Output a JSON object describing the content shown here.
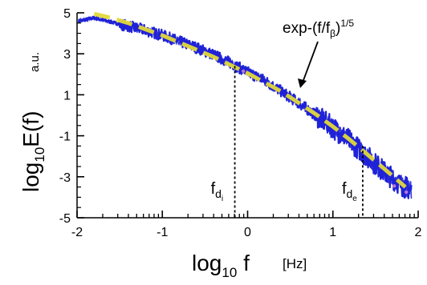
{
  "chart_data": {
    "type": "line",
    "xlabel": {
      "base": "log",
      "sub": "10",
      "main": " f",
      "unit": "[Hz]"
    },
    "ylabel": {
      "base": "log",
      "sub": "10",
      "main": "E(f)",
      "unit": "a.u."
    },
    "xlim": [
      -2,
      2
    ],
    "ylim": [
      -5,
      5
    ],
    "x_ticks": [
      "-2",
      "-1",
      "0",
      "1",
      "2"
    ],
    "y_ticks": [
      "5",
      "3",
      "1",
      "-1",
      "-3",
      "-5"
    ],
    "grid": false,
    "series": [
      {
        "style": "noisy-data",
        "color": "#1f22d6",
        "x": [
          -1.98,
          -1.8,
          -1.6,
          -1.4,
          -1.2,
          -1.0,
          -0.8,
          -0.6,
          -0.4,
          -0.2,
          0.0,
          0.2,
          0.4,
          0.6,
          0.8,
          1.0,
          1.2,
          1.4,
          1.6,
          1.8,
          1.92
        ],
        "y": [
          4.6,
          4.75,
          4.55,
          4.35,
          4.15,
          3.9,
          3.6,
          3.3,
          2.95,
          2.55,
          2.1,
          1.7,
          1.15,
          0.6,
          0.0,
          -0.6,
          -1.25,
          -2.0,
          -2.75,
          -3.4,
          -3.65
        ]
      },
      {
        "name": "exp-(f/f_β)^1/5",
        "style": "fit-dashed",
        "color": "#e2d93a",
        "x": [
          -1.8,
          -1.6,
          -1.4,
          -1.2,
          -1.0,
          -0.8,
          -0.6,
          -0.4,
          -0.2,
          0.0,
          0.2,
          0.4,
          0.6,
          0.8,
          1.0,
          1.2,
          1.4,
          1.6,
          1.85
        ],
        "y": [
          4.95,
          4.75,
          4.5,
          4.2,
          3.9,
          3.55,
          3.2,
          2.85,
          2.45,
          2.05,
          1.6,
          1.15,
          0.6,
          0.05,
          -0.55,
          -1.2,
          -1.9,
          -2.6,
          -3.5
        ]
      }
    ],
    "markers": [
      {
        "x": -0.15,
        "y": 2.4,
        "label_base": "f",
        "label_sub": "d",
        "label_subsub": "i"
      },
      {
        "x": 1.35,
        "y": -1.5,
        "label_base": "f",
        "label_sub": "d",
        "label_subsub": "e"
      }
    ],
    "annotation": {
      "text_main": "exp-(f/f",
      "text_sub": "β",
      "text_tail": ")",
      "text_sup": "1/5",
      "points_to": {
        "x": 0.6,
        "y": 0.5
      }
    },
    "colors": {
      "axis": "#000000",
      "data": "#1f22d6",
      "fit": "#e2d93a",
      "trace_tint": "#e08ad0"
    }
  }
}
